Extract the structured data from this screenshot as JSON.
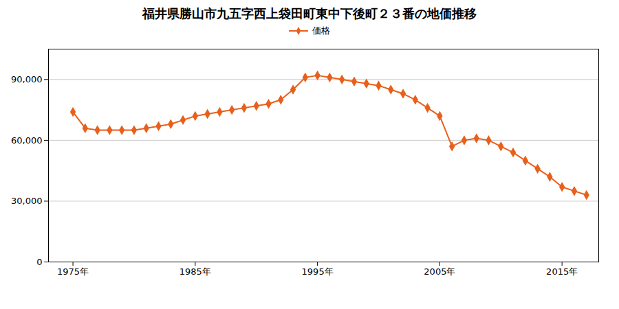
{
  "chart_data": {
    "type": "line",
    "title": "福井県勝山市九五字西上袋田町東中下後町２３番の地価推移",
    "x": [
      1975,
      1976,
      1977,
      1978,
      1979,
      1980,
      1981,
      1982,
      1983,
      1984,
      1985,
      1986,
      1987,
      1988,
      1989,
      1990,
      1991,
      1992,
      1993,
      1994,
      1995,
      1996,
      1997,
      1998,
      1999,
      2000,
      2001,
      2002,
      2003,
      2004,
      2005,
      2006,
      2007,
      2008,
      2009,
      2010,
      2011,
      2012,
      2013,
      2014,
      2015,
      2016,
      2017
    ],
    "series": [
      {
        "name": "価格",
        "color": "#e8601c",
        "marker": "diamond",
        "values": [
          74000,
          66000,
          65000,
          65000,
          65000,
          65000,
          66000,
          67000,
          68000,
          70000,
          72000,
          73000,
          74000,
          75000,
          76000,
          77000,
          78000,
          80000,
          85000,
          91000,
          92000,
          91000,
          90000,
          89000,
          88000,
          87000,
          85000,
          83000,
          80000,
          76000,
          72000,
          57000,
          60000,
          61000,
          60000,
          57000,
          54000,
          50000,
          46000,
          42000,
          37000,
          35000,
          33000
        ]
      }
    ],
    "xlim": [
      1973,
      2018
    ],
    "xticks": [
      {
        "value": 1975,
        "label": "1975年"
      },
      {
        "value": 1985,
        "label": "1985年"
      },
      {
        "value": 1995,
        "label": "1995年"
      },
      {
        "value": 2005,
        "label": "2005年"
      },
      {
        "value": 2015,
        "label": "2015年"
      }
    ],
    "ylim": [
      0,
      105000
    ],
    "yticks": [
      0,
      {
        "value": 30000,
        "label": "30,000"
      },
      {
        "value": 60000,
        "label": "60,000"
      },
      {
        "value": 90000,
        "label": "90,000"
      }
    ],
    "grid": "y",
    "legend": "top"
  }
}
